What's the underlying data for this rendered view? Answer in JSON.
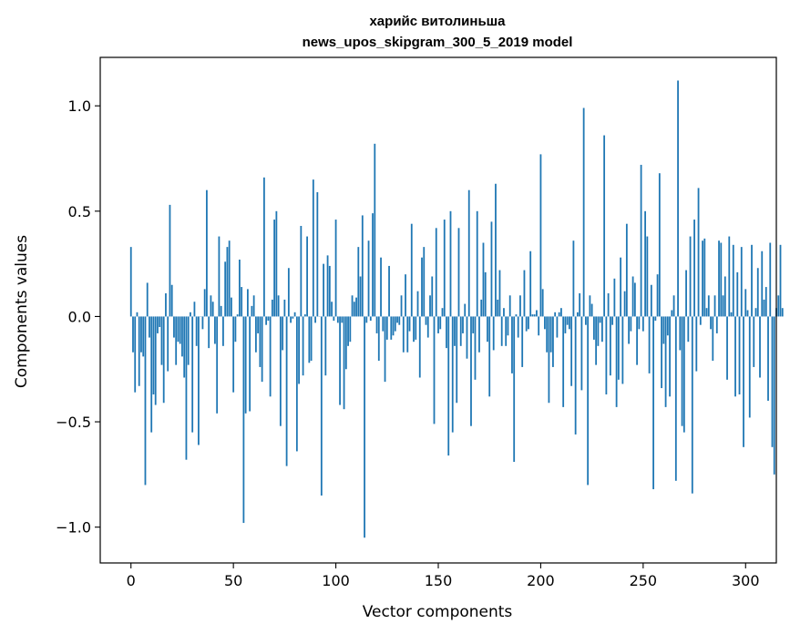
{
  "chart_data": {
    "type": "bar",
    "title": "харийс витолиньша",
    "subtitle": "news_upos_skipgram_300_5_2019 model",
    "xlabel": "Vector components",
    "ylabel": "Components values",
    "xlim": [
      -15,
      315
    ],
    "ylim": [
      -1.17,
      1.23
    ],
    "xticks": [
      0,
      50,
      100,
      150,
      200,
      250,
      300
    ],
    "xtick_labels": [
      "0",
      "50",
      "100",
      "150",
      "200",
      "250",
      "300"
    ],
    "yticks": [
      -1.0,
      -0.5,
      0.0,
      0.5,
      1.0
    ],
    "ytick_labels": [
      "−1.0",
      "−0.5",
      "0.0",
      "0.5",
      "1.0"
    ],
    "grid": false,
    "color": "#1f77b4",
    "values": [
      0.33,
      -0.17,
      -0.36,
      0.02,
      -0.33,
      -0.17,
      -0.19,
      -0.8,
      0.16,
      -0.1,
      -0.55,
      -0.37,
      -0.42,
      -0.08,
      -0.05,
      -0.23,
      -0.41,
      0.11,
      -0.26,
      0.53,
      0.15,
      -0.1,
      -0.23,
      -0.12,
      -0.13,
      -0.19,
      -0.29,
      -0.68,
      -0.23,
      0.02,
      -0.55,
      0.07,
      -0.14,
      -0.61,
      0.0,
      -0.06,
      0.13,
      0.6,
      -0.15,
      0.1,
      0.07,
      -0.13,
      -0.46,
      0.38,
      0.05,
      -0.14,
      0.26,
      0.33,
      0.36,
      0.09,
      -0.36,
      -0.12,
      0.01,
      0.27,
      0.14,
      -0.98,
      -0.46,
      0.13,
      -0.45,
      0.05,
      0.1,
      -0.17,
      -0.08,
      -0.24,
      -0.31,
      0.66,
      -0.04,
      -0.02,
      -0.38,
      0.08,
      0.46,
      0.5,
      0.1,
      -0.52,
      -0.16,
      0.08,
      -0.71,
      0.23,
      -0.03,
      -0.01,
      0.02,
      -0.64,
      -0.32,
      0.43,
      -0.28,
      0.01,
      0.38,
      -0.22,
      -0.21,
      0.65,
      -0.03,
      0.59,
      0.0,
      -0.85,
      0.25,
      -0.28,
      0.29,
      0.24,
      0.07,
      -0.02,
      0.46,
      -0.03,
      -0.42,
      -0.03,
      -0.44,
      -0.25,
      -0.14,
      -0.12,
      0.1,
      0.07,
      0.09,
      0.33,
      0.19,
      0.48,
      -1.05,
      -0.03,
      0.36,
      -0.02,
      0.49,
      0.82,
      -0.08,
      -0.21,
      0.28,
      -0.07,
      -0.31,
      -0.11,
      0.24,
      -0.11,
      -0.09,
      -0.07,
      -0.03,
      -0.04,
      0.1,
      -0.17,
      0.2,
      -0.17,
      -0.07,
      0.44,
      -0.12,
      -0.11,
      0.12,
      -0.29,
      0.28,
      0.33,
      -0.04,
      -0.1,
      0.1,
      0.19,
      -0.51,
      0.42,
      -0.08,
      -0.06,
      0.04,
      0.46,
      -0.15,
      -0.66,
      0.5,
      -0.55,
      -0.14,
      -0.41,
      0.42,
      -0.14,
      -0.08,
      0.06,
      -0.2,
      0.6,
      -0.52,
      -0.08,
      -0.3,
      0.5,
      -0.17,
      0.08,
      0.35,
      0.21,
      -0.12,
      -0.38,
      0.45,
      -0.16,
      0.63,
      0.08,
      0.22,
      -0.14,
      0.04,
      -0.14,
      -0.09,
      0.1,
      -0.27,
      -0.69,
      0.01,
      -0.1,
      0.1,
      -0.24,
      0.22,
      -0.07,
      -0.06,
      0.31,
      0.01,
      0.01,
      0.03,
      -0.09,
      0.77,
      0.13,
      -0.06,
      -0.17,
      -0.41,
      -0.17,
      -0.24,
      0.02,
      -0.1,
      0.02,
      0.04,
      -0.43,
      -0.08,
      -0.04,
      -0.06,
      -0.33,
      0.36,
      -0.56,
      0.02,
      0.11,
      -0.35,
      0.99,
      -0.04,
      -0.8,
      0.1,
      0.06,
      -0.11,
      -0.23,
      -0.14,
      -0.03,
      -0.12,
      0.86,
      -0.37,
      0.11,
      -0.28,
      -0.04,
      0.18,
      -0.43,
      -0.3,
      0.28,
      -0.32,
      0.12,
      0.44,
      -0.13,
      -0.07,
      0.19,
      0.16,
      -0.23,
      -0.06,
      0.72,
      -0.07,
      0.5,
      0.38,
      -0.27,
      0.15,
      -0.82,
      -0.02,
      0.2,
      0.68,
      -0.34,
      -0.13,
      -0.43,
      -0.09,
      -0.38,
      0.03,
      0.1,
      -0.78,
      1.12,
      -0.16,
      -0.52,
      -0.55,
      0.22,
      -0.12,
      0.38,
      -0.84,
      0.46,
      -0.26,
      0.61,
      -0.04,
      0.36,
      0.37,
      0.04,
      0.1,
      -0.06,
      -0.21,
      0.1,
      -0.08,
      0.36,
      0.35,
      0.1,
      0.19,
      -0.3,
      0.38,
      0.02,
      0.34,
      -0.38,
      0.21,
      -0.37,
      0.33,
      -0.62,
      0.13,
      0.03,
      -0.48,
      0.34,
      -0.24,
      0.04,
      0.23,
      -0.29,
      0.31,
      0.08,
      0.14,
      -0.4,
      0.35,
      -0.62,
      -0.75,
      0.04,
      0.1,
      0.34,
      0.04
    ]
  }
}
